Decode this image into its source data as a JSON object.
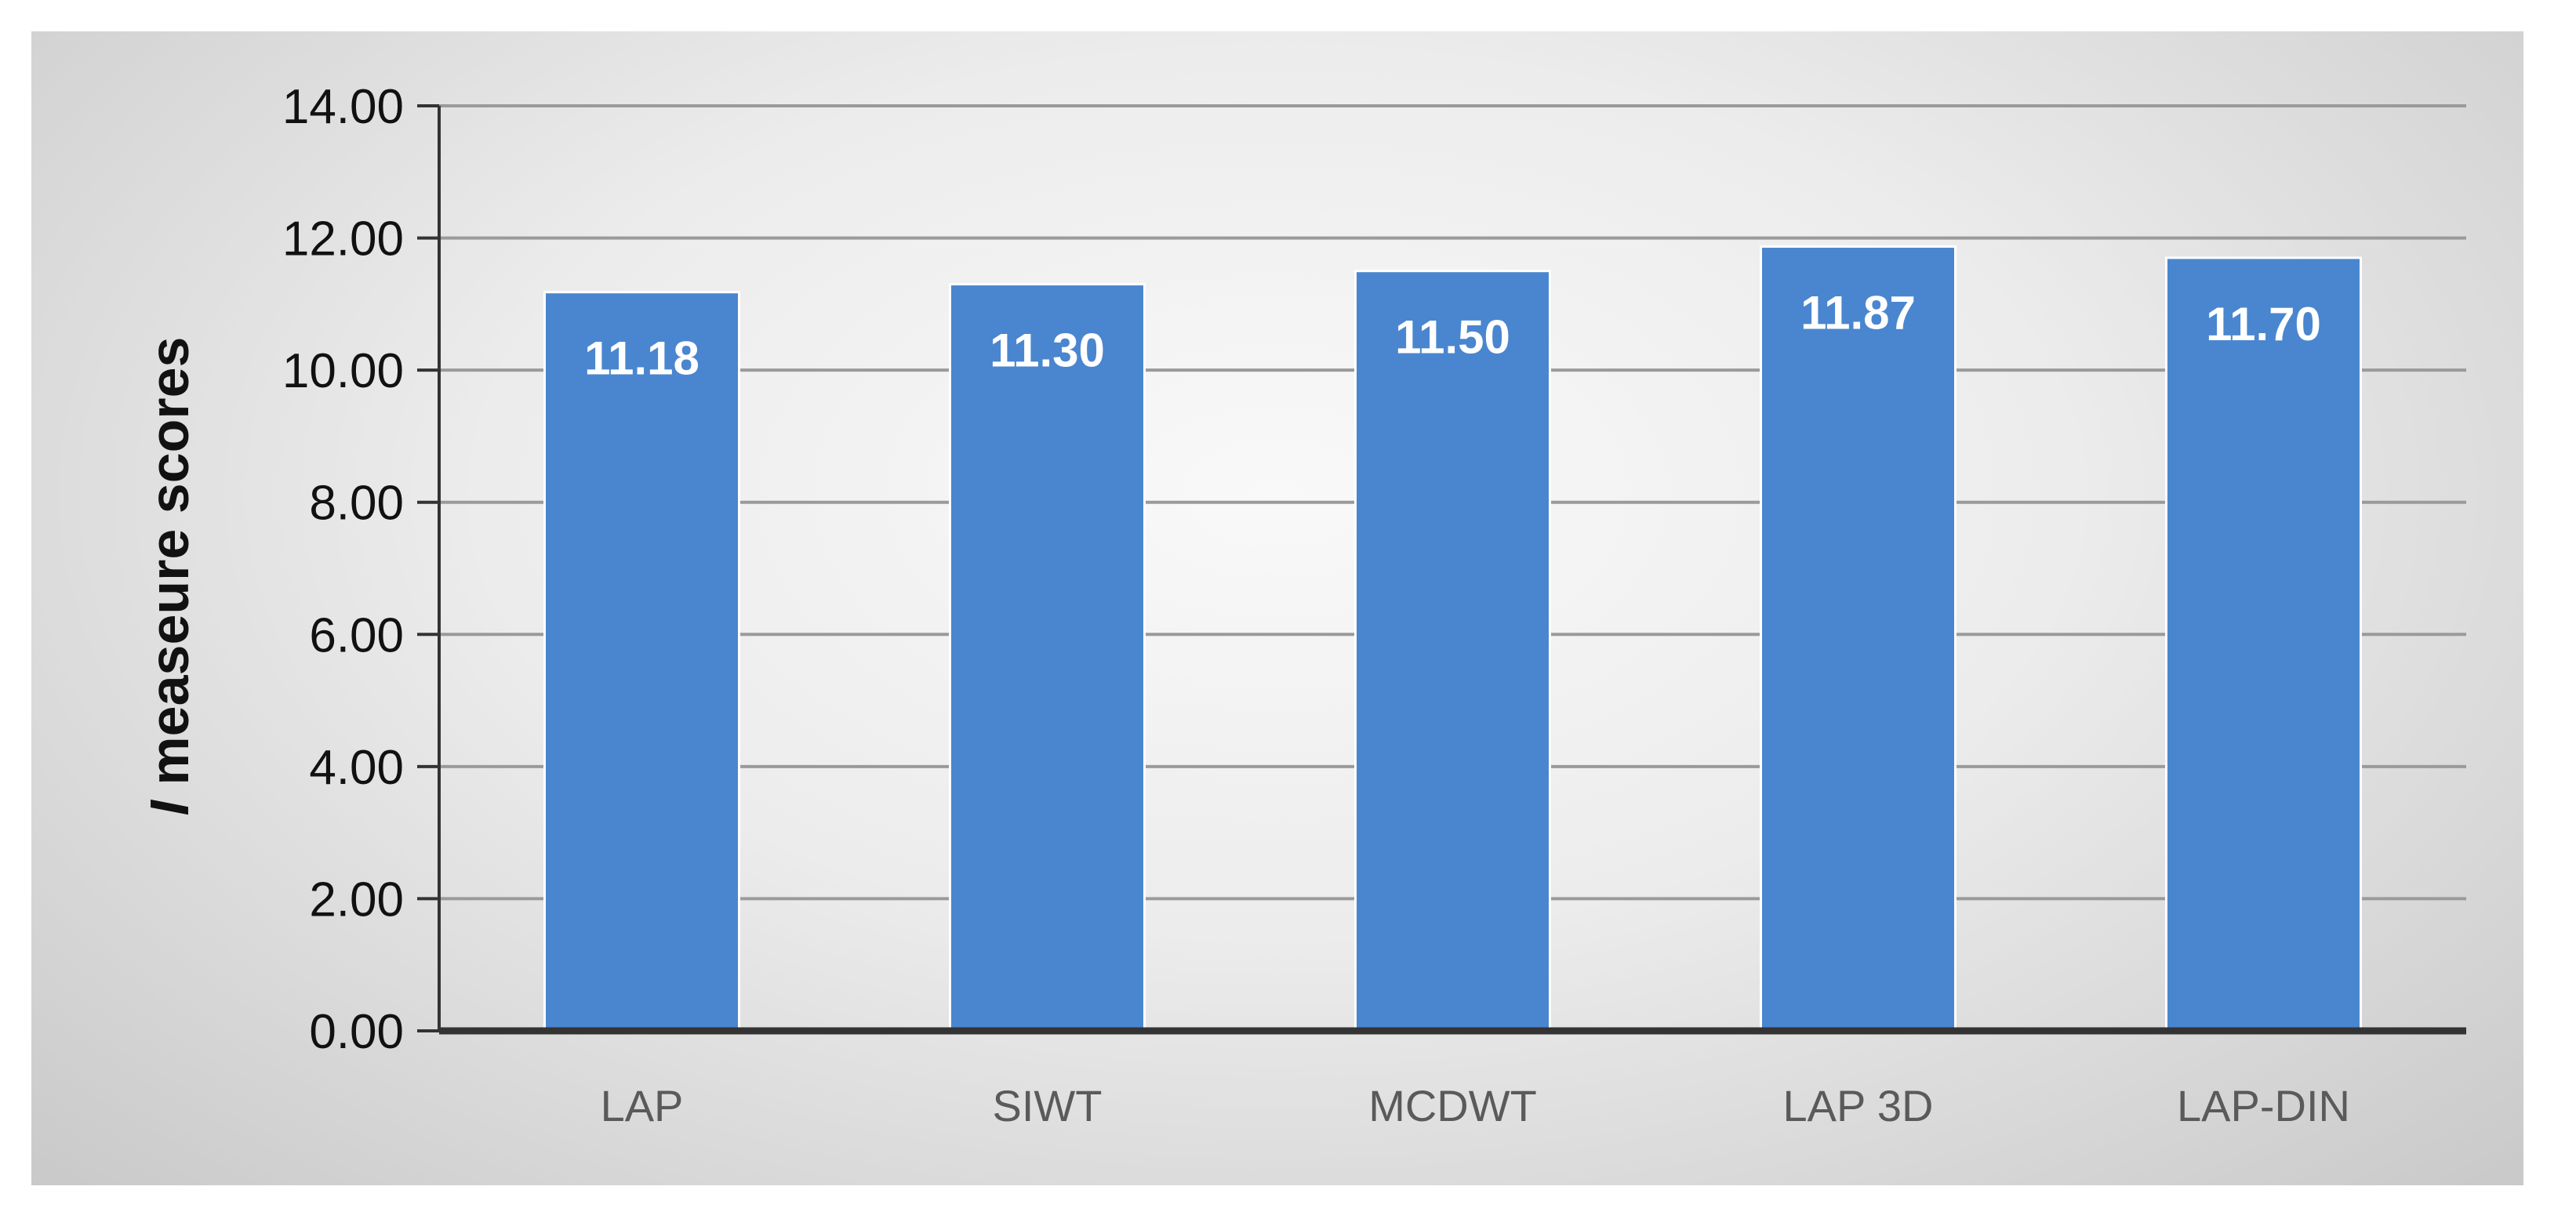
{
  "chart_data": {
    "type": "bar",
    "title": "",
    "xlabel": "",
    "ylabel_italic": "I",
    "ylabel_rest": " measeure scores",
    "categories": [
      "LAP",
      "SIWT",
      "MCDWT",
      "LAP 3D",
      "LAP-DIN"
    ],
    "values": [
      11.18,
      11.3,
      11.5,
      11.87,
      11.7
    ],
    "value_labels": [
      "11.18",
      "11.30",
      "11.50",
      "11.87",
      "11.70"
    ],
    "ylim": [
      0,
      14
    ],
    "yticks": [
      "0.00",
      "2.00",
      "4.00",
      "6.00",
      "8.00",
      "10.00",
      "12.00",
      "14.00"
    ],
    "grid": true,
    "legend": "none",
    "colors": {
      "bar": "#4a86cf",
      "bar_edge": "#ffffff",
      "grid": "#9a9a9a",
      "axis": "#333333"
    }
  }
}
